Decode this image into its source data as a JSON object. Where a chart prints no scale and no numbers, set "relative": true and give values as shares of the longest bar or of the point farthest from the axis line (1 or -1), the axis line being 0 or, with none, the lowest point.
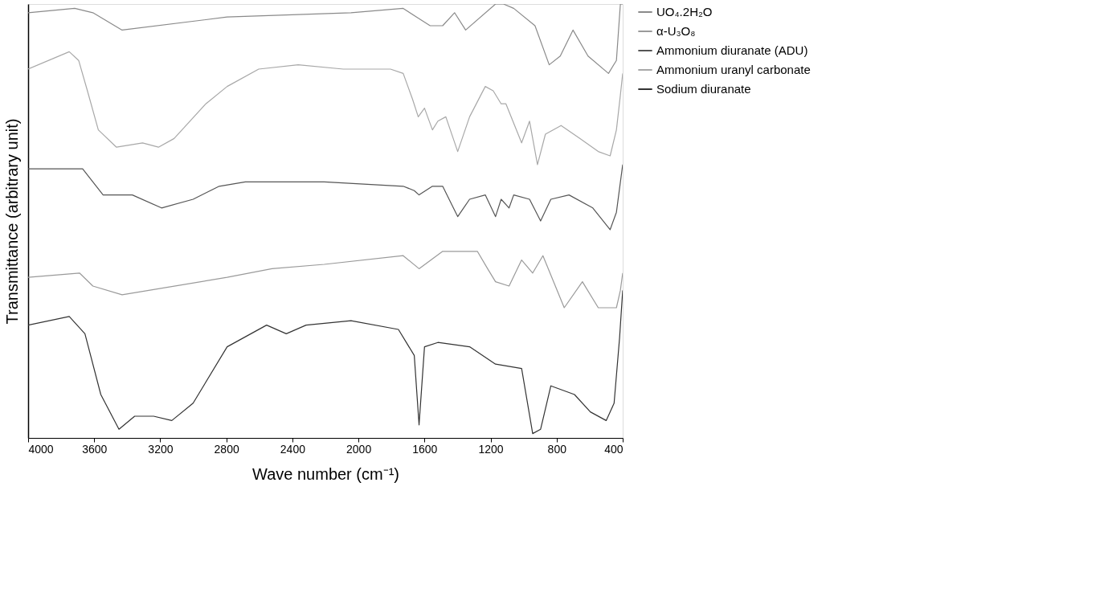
{
  "chart_data": {
    "type": "line",
    "relative": true,
    "xlabel": "Wave number (cm⁻¹)",
    "ylabel": "Transmittance (arbitrary unit)",
    "xlim": [
      4000,
      400
    ],
    "xticks": [
      4000,
      3600,
      3200,
      2800,
      2400,
      2000,
      1600,
      1200,
      800,
      400
    ],
    "grid": false,
    "legend": "right",
    "marker": "none",
    "line_style": "solid",
    "series": [
      {
        "name": "UO₄.2H₂O",
        "color": "#8a8a8a",
        "x": [
          4000,
          3718,
          3608,
          3431,
          2795,
          2045,
          1729,
          1648,
          1566,
          1490,
          1418,
          1351,
          1170,
          1122,
          1060,
          931,
          845,
          778,
          701,
          610,
          486,
          438,
          414,
          400
        ],
        "values": [
          0.98,
          0.99,
          0.98,
          0.94,
          0.97,
          0.98,
          0.99,
          0.97,
          0.95,
          0.95,
          0.98,
          0.94,
          1.0,
          1.0,
          0.99,
          0.95,
          0.86,
          0.88,
          0.94,
          0.88,
          0.84,
          0.87,
          1.0,
          1.0
        ]
      },
      {
        "name": "α-U₃O₈",
        "color": "#9a9a9a",
        "x": [
          4000,
          3689,
          3608,
          3431,
          2795,
          2523,
          2207,
          1729,
          1633,
          1490,
          1280,
          1218,
          1170,
          1088,
          1012,
          945,
          883,
          754,
          644,
          548,
          476,
          438,
          414,
          400
        ],
        "values": [
          0.37,
          0.38,
          0.35,
          0.33,
          0.37,
          0.39,
          0.4,
          0.42,
          0.39,
          0.43,
          0.43,
          0.39,
          0.36,
          0.35,
          0.41,
          0.38,
          0.42,
          0.3,
          0.36,
          0.3,
          0.3,
          0.3,
          0.34,
          0.38
        ]
      },
      {
        "name": "Ammonium diuranate (ADU)",
        "color": "#555555",
        "x": [
          4000,
          3670,
          3546,
          3369,
          3192,
          3001,
          2843,
          2685,
          2207,
          1729,
          1662,
          1633,
          1552,
          1490,
          1399,
          1327,
          1232,
          1170,
          1136,
          1088,
          1060,
          964,
          897,
          835,
          725,
          581,
          476,
          438,
          400
        ],
        "values": [
          0.62,
          0.62,
          0.56,
          0.56,
          0.53,
          0.55,
          0.58,
          0.59,
          0.59,
          0.58,
          0.57,
          0.56,
          0.58,
          0.58,
          0.51,
          0.55,
          0.56,
          0.51,
          0.55,
          0.53,
          0.56,
          0.55,
          0.5,
          0.55,
          0.56,
          0.53,
          0.48,
          0.52,
          0.63
        ]
      },
      {
        "name": "Ammonium uranyl carbonate",
        "color": "#a8a8a8",
        "x": [
          4000,
          3751,
          3694,
          3641,
          3575,
          3465,
          3307,
          3211,
          3116,
          2924,
          2795,
          2604,
          2365,
          2092,
          1806,
          1729,
          1672,
          1638,
          1600,
          1552,
          1519,
          1471,
          1399,
          1327,
          1232,
          1184,
          1136,
          1107,
          1012,
          964,
          916,
          868,
          773,
          658,
          548,
          476,
          438,
          414,
          400
        ],
        "values": [
          0.85,
          0.89,
          0.87,
          0.8,
          0.71,
          0.67,
          0.68,
          0.67,
          0.69,
          0.77,
          0.81,
          0.85,
          0.86,
          0.85,
          0.85,
          0.84,
          0.78,
          0.74,
          0.76,
          0.71,
          0.73,
          0.74,
          0.66,
          0.74,
          0.81,
          0.8,
          0.77,
          0.77,
          0.68,
          0.73,
          0.63,
          0.7,
          0.72,
          0.69,
          0.66,
          0.65,
          0.71,
          0.79,
          0.84
        ]
      },
      {
        "name": "Sodium diuranate",
        "color": "#333333",
        "x": [
          4000,
          3751,
          3656,
          3560,
          3450,
          3355,
          3240,
          3130,
          3001,
          2795,
          2556,
          2437,
          2317,
          2045,
          1758,
          1662,
          1633,
          1600,
          1519,
          1327,
          1170,
          1012,
          945,
          897,
          835,
          692,
          596,
          500,
          452,
          419,
          400
        ],
        "values": [
          0.26,
          0.28,
          0.24,
          0.1,
          0.02,
          0.05,
          0.05,
          0.04,
          0.08,
          0.21,
          0.26,
          0.24,
          0.26,
          0.27,
          0.25,
          0.19,
          0.03,
          0.21,
          0.22,
          0.21,
          0.17,
          0.16,
          0.01,
          0.02,
          0.12,
          0.1,
          0.06,
          0.04,
          0.08,
          0.23,
          0.34
        ]
      }
    ]
  }
}
